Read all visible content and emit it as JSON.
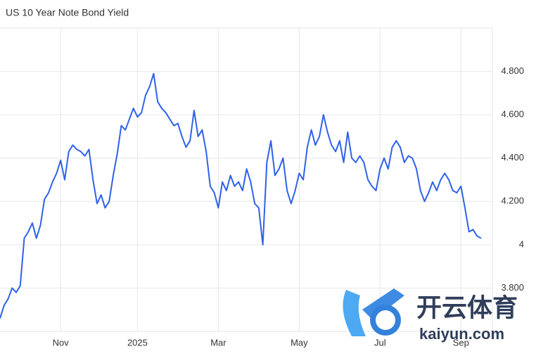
{
  "chart_data": {
    "type": "line",
    "title": "US 10 Year Note Bond Yield",
    "categories": [
      null,
      null,
      null,
      null,
      null,
      null,
      null,
      null,
      null,
      null,
      null,
      null,
      null,
      null,
      null,
      "Nov",
      null,
      null,
      null,
      null,
      null,
      null,
      null,
      null,
      null,
      null,
      null,
      null,
      null,
      null,
      null,
      null,
      null,
      null,
      "2025",
      null,
      null,
      null,
      null,
      null,
      null,
      null,
      null,
      null,
      null,
      null,
      null,
      null,
      null,
      null,
      null,
      null,
      null,
      null,
      "Mar",
      null,
      null,
      null,
      null,
      null,
      null,
      null,
      null,
      null,
      null,
      null,
      null,
      null,
      null,
      null,
      null,
      null,
      null,
      null,
      "May",
      null,
      null,
      null,
      null,
      null,
      null,
      null,
      null,
      null,
      null,
      null,
      null,
      null,
      null,
      null,
      null,
      null,
      null,
      null,
      "Jul",
      null,
      null,
      null,
      null,
      null,
      null,
      null,
      null,
      null,
      null,
      null,
      null,
      null,
      null,
      null,
      null,
      null,
      null,
      null,
      "Sep",
      null,
      null,
      null,
      null,
      null
    ],
    "values": [
      3.66,
      3.72,
      3.75,
      3.8,
      3.78,
      3.81,
      4.03,
      4.06,
      4.1,
      4.03,
      4.09,
      4.21,
      4.24,
      4.29,
      4.33,
      4.39,
      4.3,
      4.43,
      4.46,
      4.44,
      4.43,
      4.41,
      4.44,
      4.3,
      4.19,
      4.23,
      4.17,
      4.2,
      4.32,
      4.42,
      4.55,
      4.53,
      4.58,
      4.63,
      4.59,
      4.61,
      4.69,
      4.73,
      4.79,
      4.66,
      4.63,
      4.61,
      4.58,
      4.55,
      4.56,
      4.5,
      4.45,
      4.48,
      4.62,
      4.5,
      4.53,
      4.43,
      4.27,
      4.24,
      4.17,
      4.29,
      4.25,
      4.32,
      4.27,
      4.29,
      4.25,
      4.35,
      4.29,
      4.19,
      4.17,
      4.0,
      4.38,
      4.48,
      4.32,
      4.35,
      4.4,
      4.25,
      4.19,
      4.25,
      4.33,
      4.3,
      4.45,
      4.53,
      4.46,
      4.5,
      4.6,
      4.52,
      4.46,
      4.43,
      4.48,
      4.38,
      4.52,
      4.4,
      4.38,
      4.41,
      4.38,
      4.3,
      4.27,
      4.25,
      4.35,
      4.4,
      4.35,
      4.45,
      4.48,
      4.45,
      4.38,
      4.41,
      4.4,
      4.35,
      4.25,
      4.2,
      4.24,
      4.29,
      4.25,
      4.3,
      4.33,
      4.3,
      4.25,
      4.24,
      4.27,
      4.17,
      4.06,
      4.07,
      4.04,
      4.03
    ],
    "color": "#2f62e9",
    "ylim": [
      3.6,
      5.0
    ],
    "yticks": [
      {
        "value": 3.8,
        "label": "3.800"
      },
      4,
      {
        "value": 4.2,
        "label": "4.200"
      },
      {
        "value": 4.4,
        "label": "4.400"
      },
      {
        "value": 4.6,
        "label": "4.600"
      },
      {
        "value": 4.8,
        "label": "4.800"
      }
    ],
    "grid": true
  },
  "watermark": {
    "brand": "开云体育",
    "site": "kaiyun.com"
  }
}
